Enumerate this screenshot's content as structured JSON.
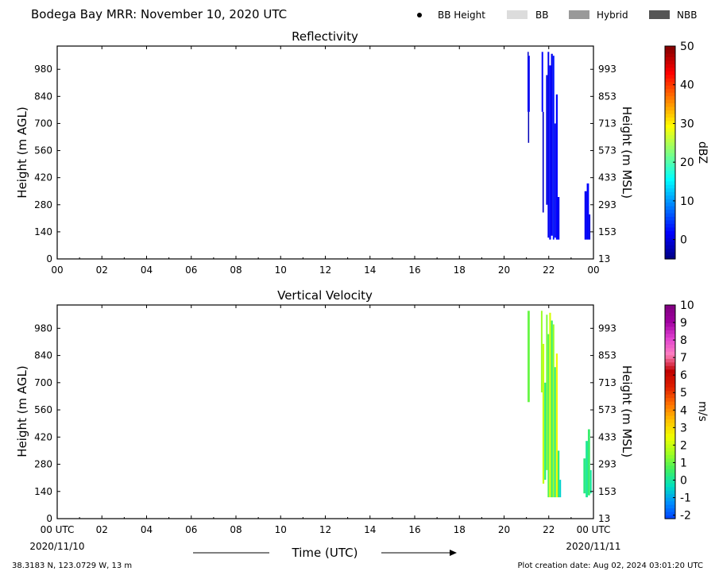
{
  "header": {
    "title": "Bodega Bay MRR:  November 10, 2020 UTC",
    "legend": [
      {
        "label": "BB Height",
        "kind": "dot",
        "color": "#000000"
      },
      {
        "label": "BB",
        "kind": "swatch",
        "color": "#dcdcdc"
      },
      {
        "label": "Hybrid",
        "kind": "swatch",
        "color": "#999999"
      },
      {
        "label": "NBB",
        "kind": "swatch",
        "color": "#555555"
      }
    ]
  },
  "footer": {
    "location": "38.3183 N, 123.0729 W, 13 m",
    "creation": "Plot creation date: Aug 02, 2024 03:01:20 UTC",
    "x_axis_title": "Time (UTC)",
    "start_date": "2020/11/10",
    "end_date": "2020/11/11"
  },
  "chart_data": [
    {
      "type": "heatmap",
      "title": "Reflectivity",
      "xlabel": "",
      "ylabel": "Height (m AGL)",
      "ylabel_right": "Height (m MSL)",
      "xlim": [
        0,
        24
      ],
      "ylim": [
        0,
        1100
      ],
      "x_ticks": [
        "00",
        "02",
        "04",
        "06",
        "08",
        "10",
        "12",
        "14",
        "16",
        "18",
        "20",
        "22",
        "00"
      ],
      "y_ticks_left": [
        "0",
        "140",
        "280",
        "420",
        "560",
        "700",
        "840",
        "980"
      ],
      "y_ticks_right": [
        "13",
        "153",
        "293",
        "433",
        "573",
        "713",
        "853",
        "993"
      ],
      "colorbar": {
        "label": "dBZ",
        "range": [
          -5,
          50
        ],
        "ticks": [
          "0",
          "10",
          "20",
          "30",
          "40",
          "50"
        ],
        "tick_values": [
          0,
          10,
          20,
          30,
          40,
          50
        ],
        "colors": [
          "#00007f",
          "#0000ff",
          "#0080ff",
          "#00ffff",
          "#80ff80",
          "#ffff00",
          "#ff8000",
          "#ff0000",
          "#7f0000"
        ]
      },
      "data_note_color": "#0a2ad8",
      "columns": [
        {
          "t0": 21.05,
          "t1": 21.1,
          "h0": 1050,
          "h1": 1070,
          "value": -1
        },
        {
          "t0": 21.05,
          "t1": 21.15,
          "h0": 760,
          "h1": 1050,
          "value": 1
        },
        {
          "t0": 21.07,
          "t1": 21.12,
          "h0": 600,
          "h1": 760,
          "value": -2
        },
        {
          "t0": 21.68,
          "t1": 21.75,
          "h0": 760,
          "h1": 1070,
          "value": 2
        },
        {
          "t0": 21.72,
          "t1": 21.78,
          "h0": 240,
          "h1": 760,
          "value": -1
        },
        {
          "t0": 21.88,
          "t1": 21.95,
          "h0": 280,
          "h1": 950,
          "value": 0
        },
        {
          "t0": 21.95,
          "t1": 22.02,
          "h0": 110,
          "h1": 1070,
          "value": 1
        },
        {
          "t0": 22.02,
          "t1": 22.1,
          "h0": 100,
          "h1": 1000,
          "value": 2
        },
        {
          "t0": 22.1,
          "t1": 22.18,
          "h0": 120,
          "h1": 1060,
          "value": 1
        },
        {
          "t0": 22.18,
          "t1": 22.25,
          "h0": 100,
          "h1": 1050,
          "value": 3
        },
        {
          "t0": 22.25,
          "t1": 22.32,
          "h0": 110,
          "h1": 700,
          "value": 1
        },
        {
          "t0": 22.32,
          "t1": 22.4,
          "h0": 100,
          "h1": 850,
          "value": 2
        },
        {
          "t0": 22.4,
          "t1": 22.48,
          "h0": 100,
          "h1": 320,
          "value": 1
        },
        {
          "t0": 23.6,
          "t1": 23.7,
          "h0": 100,
          "h1": 350,
          "value": 1
        },
        {
          "t0": 23.7,
          "t1": 23.8,
          "h0": 100,
          "h1": 390,
          "value": 2
        },
        {
          "t0": 23.8,
          "t1": 23.86,
          "h0": 100,
          "h1": 230,
          "value": 0
        }
      ]
    },
    {
      "type": "heatmap",
      "title": "Vertical Velocity",
      "xlabel": "Time (UTC)",
      "ylabel": "Height (m AGL)",
      "ylabel_right": "Height (m MSL)",
      "xlim": [
        0,
        24
      ],
      "ylim": [
        0,
        1100
      ],
      "x_ticks": [
        "00 UTC",
        "02",
        "04",
        "06",
        "08",
        "10",
        "12",
        "14",
        "16",
        "18",
        "20",
        "22",
        "00 UTC"
      ],
      "y_ticks_left": [
        "0",
        "140",
        "280",
        "420",
        "560",
        "700",
        "840",
        "980"
      ],
      "y_ticks_right": [
        "13",
        "153",
        "293",
        "433",
        "573",
        "713",
        "853",
        "993"
      ],
      "colorbar": {
        "label": "m/s",
        "range": [
          -2.2,
          10
        ],
        "ticks": [
          "-2",
          "-1",
          "0",
          "1",
          "2",
          "3",
          "4",
          "5",
          "6",
          "7",
          "8",
          "9",
          "10"
        ],
        "tick_values": [
          -2,
          -1,
          0,
          1,
          2,
          3,
          4,
          5,
          6,
          7,
          8,
          9,
          10
        ],
        "colors": [
          "#0040ff",
          "#0090ff",
          "#00e0c0",
          "#40f060",
          "#a0ff20",
          "#f0ff00",
          "#ffc000",
          "#ff7000",
          "#e02000",
          "#c00000",
          "#ff80c0",
          "#e040d0",
          "#a000a0",
          "#800080"
        ]
      },
      "columns": [
        {
          "t0": 21.05,
          "t1": 21.15,
          "h0": 600,
          "h1": 1070,
          "value": 1
        },
        {
          "t0": 21.65,
          "t1": 21.72,
          "h0": 650,
          "h1": 1070,
          "value": 1.5
        },
        {
          "t0": 21.72,
          "t1": 21.8,
          "h0": 180,
          "h1": 900,
          "value": 2
        },
        {
          "t0": 21.8,
          "t1": 21.88,
          "h0": 200,
          "h1": 700,
          "value": 0.3
        },
        {
          "t0": 21.88,
          "t1": 21.95,
          "h0": 250,
          "h1": 1050,
          "value": 1.2
        },
        {
          "t0": 21.95,
          "t1": 22.02,
          "h0": 110,
          "h1": 950,
          "value": 0.8
        },
        {
          "t0": 22.02,
          "t1": 22.1,
          "h0": 110,
          "h1": 1060,
          "value": 2.2
        },
        {
          "t0": 22.1,
          "t1": 22.18,
          "h0": 110,
          "h1": 1020,
          "value": 0.5
        },
        {
          "t0": 22.18,
          "t1": 22.25,
          "h0": 110,
          "h1": 1000,
          "value": 1.5
        },
        {
          "t0": 22.25,
          "t1": 22.32,
          "h0": 110,
          "h1": 780,
          "value": 0.2
        },
        {
          "t0": 22.32,
          "t1": 22.4,
          "h0": 110,
          "h1": 850,
          "value": 2.6
        },
        {
          "t0": 22.4,
          "t1": 22.48,
          "h0": 110,
          "h1": 350,
          "value": 0.4
        },
        {
          "t0": 22.48,
          "t1": 22.55,
          "h0": 110,
          "h1": 200,
          "value": -0.5
        },
        {
          "t0": 23.55,
          "t1": 23.65,
          "h0": 130,
          "h1": 310,
          "value": 0.3
        },
        {
          "t0": 23.65,
          "t1": 23.75,
          "h0": 110,
          "h1": 400,
          "value": 0.1
        },
        {
          "t0": 23.75,
          "t1": 23.85,
          "h0": 120,
          "h1": 460,
          "value": 0.5
        },
        {
          "t0": 23.85,
          "t1": 23.92,
          "h0": 130,
          "h1": 250,
          "value": 0
        }
      ]
    }
  ]
}
